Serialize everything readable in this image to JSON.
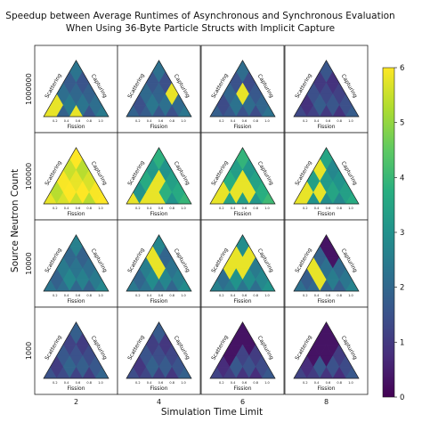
{
  "chart_data": {
    "type": "heatmap",
    "title_lines": [
      "Speedup between Average Runtimes of Asynchronous and Synchronous Evaluation",
      "When Using 36-Byte Particle Structs with Implicit Capture"
    ],
    "xlabel": "Simulation Time Limit",
    "ylabel": "Source Neutron Count",
    "columns": [
      "2",
      "4",
      "6",
      "8"
    ],
    "rows": [
      "1000000",
      "100000",
      "10000",
      "1000"
    ],
    "ternary": {
      "axes": {
        "bottom": "Fission",
        "left": "Scattering",
        "right": "Capturing"
      },
      "ticks": [
        "0.2",
        "0.4",
        "0.6",
        "0.8",
        "1.0"
      ]
    },
    "colorbar": {
      "min": 0,
      "max": 6,
      "ticks": [
        "0",
        "1",
        "2",
        "3",
        "4",
        "5",
        "6"
      ],
      "colormap": "viridis"
    },
    "panels": [
      {
        "row": "1000000",
        "col": "2",
        "base": 2.0,
        "hot": [
          [
            4,
            0,
            0
          ],
          [
            4,
            1,
            0
          ],
          [
            3,
            0,
            1
          ],
          [
            3,
            1,
            1
          ],
          [
            2,
            2,
            0
          ]
        ],
        "cold": []
      },
      {
        "row": "1000000",
        "col": "4",
        "base": 1.9,
        "hot": [
          [
            0,
            2,
            2
          ]
        ],
        "cold": []
      },
      {
        "row": "1000000",
        "col": "6",
        "base": 1.8,
        "hot": [
          [
            1,
            1,
            2
          ]
        ],
        "cold": []
      },
      {
        "row": "1000000",
        "col": "8",
        "base": 1.3,
        "hot": [],
        "cold": []
      },
      {
        "row": "100000",
        "col": "2",
        "base": 5.8,
        "hot": [],
        "cold": []
      },
      {
        "row": "100000",
        "col": "4",
        "base": 3.5,
        "hot": [
          [
            4,
            0,
            0
          ],
          [
            3,
            1,
            0
          ],
          [
            2,
            2,
            0
          ],
          [
            2,
            1,
            1
          ],
          [
            1,
            1,
            2
          ]
        ],
        "cold": []
      },
      {
        "row": "100000",
        "col": "6",
        "base": 3.6,
        "hot": [
          [
            4,
            0,
            0
          ],
          [
            3,
            0,
            1
          ],
          [
            2,
            1,
            1
          ],
          [
            1,
            2,
            1
          ],
          [
            1,
            1,
            2
          ]
        ],
        "cold": []
      },
      {
        "row": "100000",
        "col": "8",
        "base": 3.2,
        "hot": [
          [
            4,
            0,
            0
          ],
          [
            3,
            0,
            1
          ],
          [
            2,
            1,
            1
          ],
          [
            1,
            0,
            3
          ]
        ],
        "cold": []
      },
      {
        "row": "10000",
        "col": "2",
        "base": 2.3,
        "hot": [],
        "cold": []
      },
      {
        "row": "10000",
        "col": "4",
        "base": 2.4,
        "hot": [
          [
            1,
            0,
            3
          ],
          [
            1,
            1,
            2
          ]
        ],
        "cold": []
      },
      {
        "row": "10000",
        "col": "6",
        "base": 2.6,
        "hot": [
          [
            2,
            0,
            2
          ],
          [
            1,
            0,
            3
          ],
          [
            1,
            1,
            2
          ],
          [
            0,
            1,
            3
          ]
        ],
        "cold": []
      },
      {
        "row": "10000",
        "col": "8",
        "base": 2.2,
        "hot": [
          [
            2,
            1,
            1
          ],
          [
            2,
            0,
            2
          ]
        ],
        "cold": [
          [
            0,
            0,
            4
          ],
          [
            0,
            1,
            3
          ]
        ]
      },
      {
        "row": "1000",
        "col": "2",
        "base": 1.5,
        "hot": [],
        "cold": []
      },
      {
        "row": "1000",
        "col": "4",
        "base": 1.4,
        "hot": [],
        "cold": []
      },
      {
        "row": "1000",
        "col": "6",
        "base": 1.2,
        "hot": [],
        "cold": [
          [
            0,
            0,
            4
          ],
          [
            1,
            0,
            3
          ],
          [
            0,
            1,
            3
          ],
          [
            2,
            0,
            2
          ]
        ]
      },
      {
        "row": "1000",
        "col": "8",
        "base": 1.2,
        "hot": [],
        "cold": [
          [
            0,
            0,
            4
          ],
          [
            1,
            0,
            3
          ],
          [
            0,
            1,
            3
          ],
          [
            1,
            1,
            2
          ],
          [
            2,
            0,
            2
          ]
        ]
      }
    ]
  }
}
